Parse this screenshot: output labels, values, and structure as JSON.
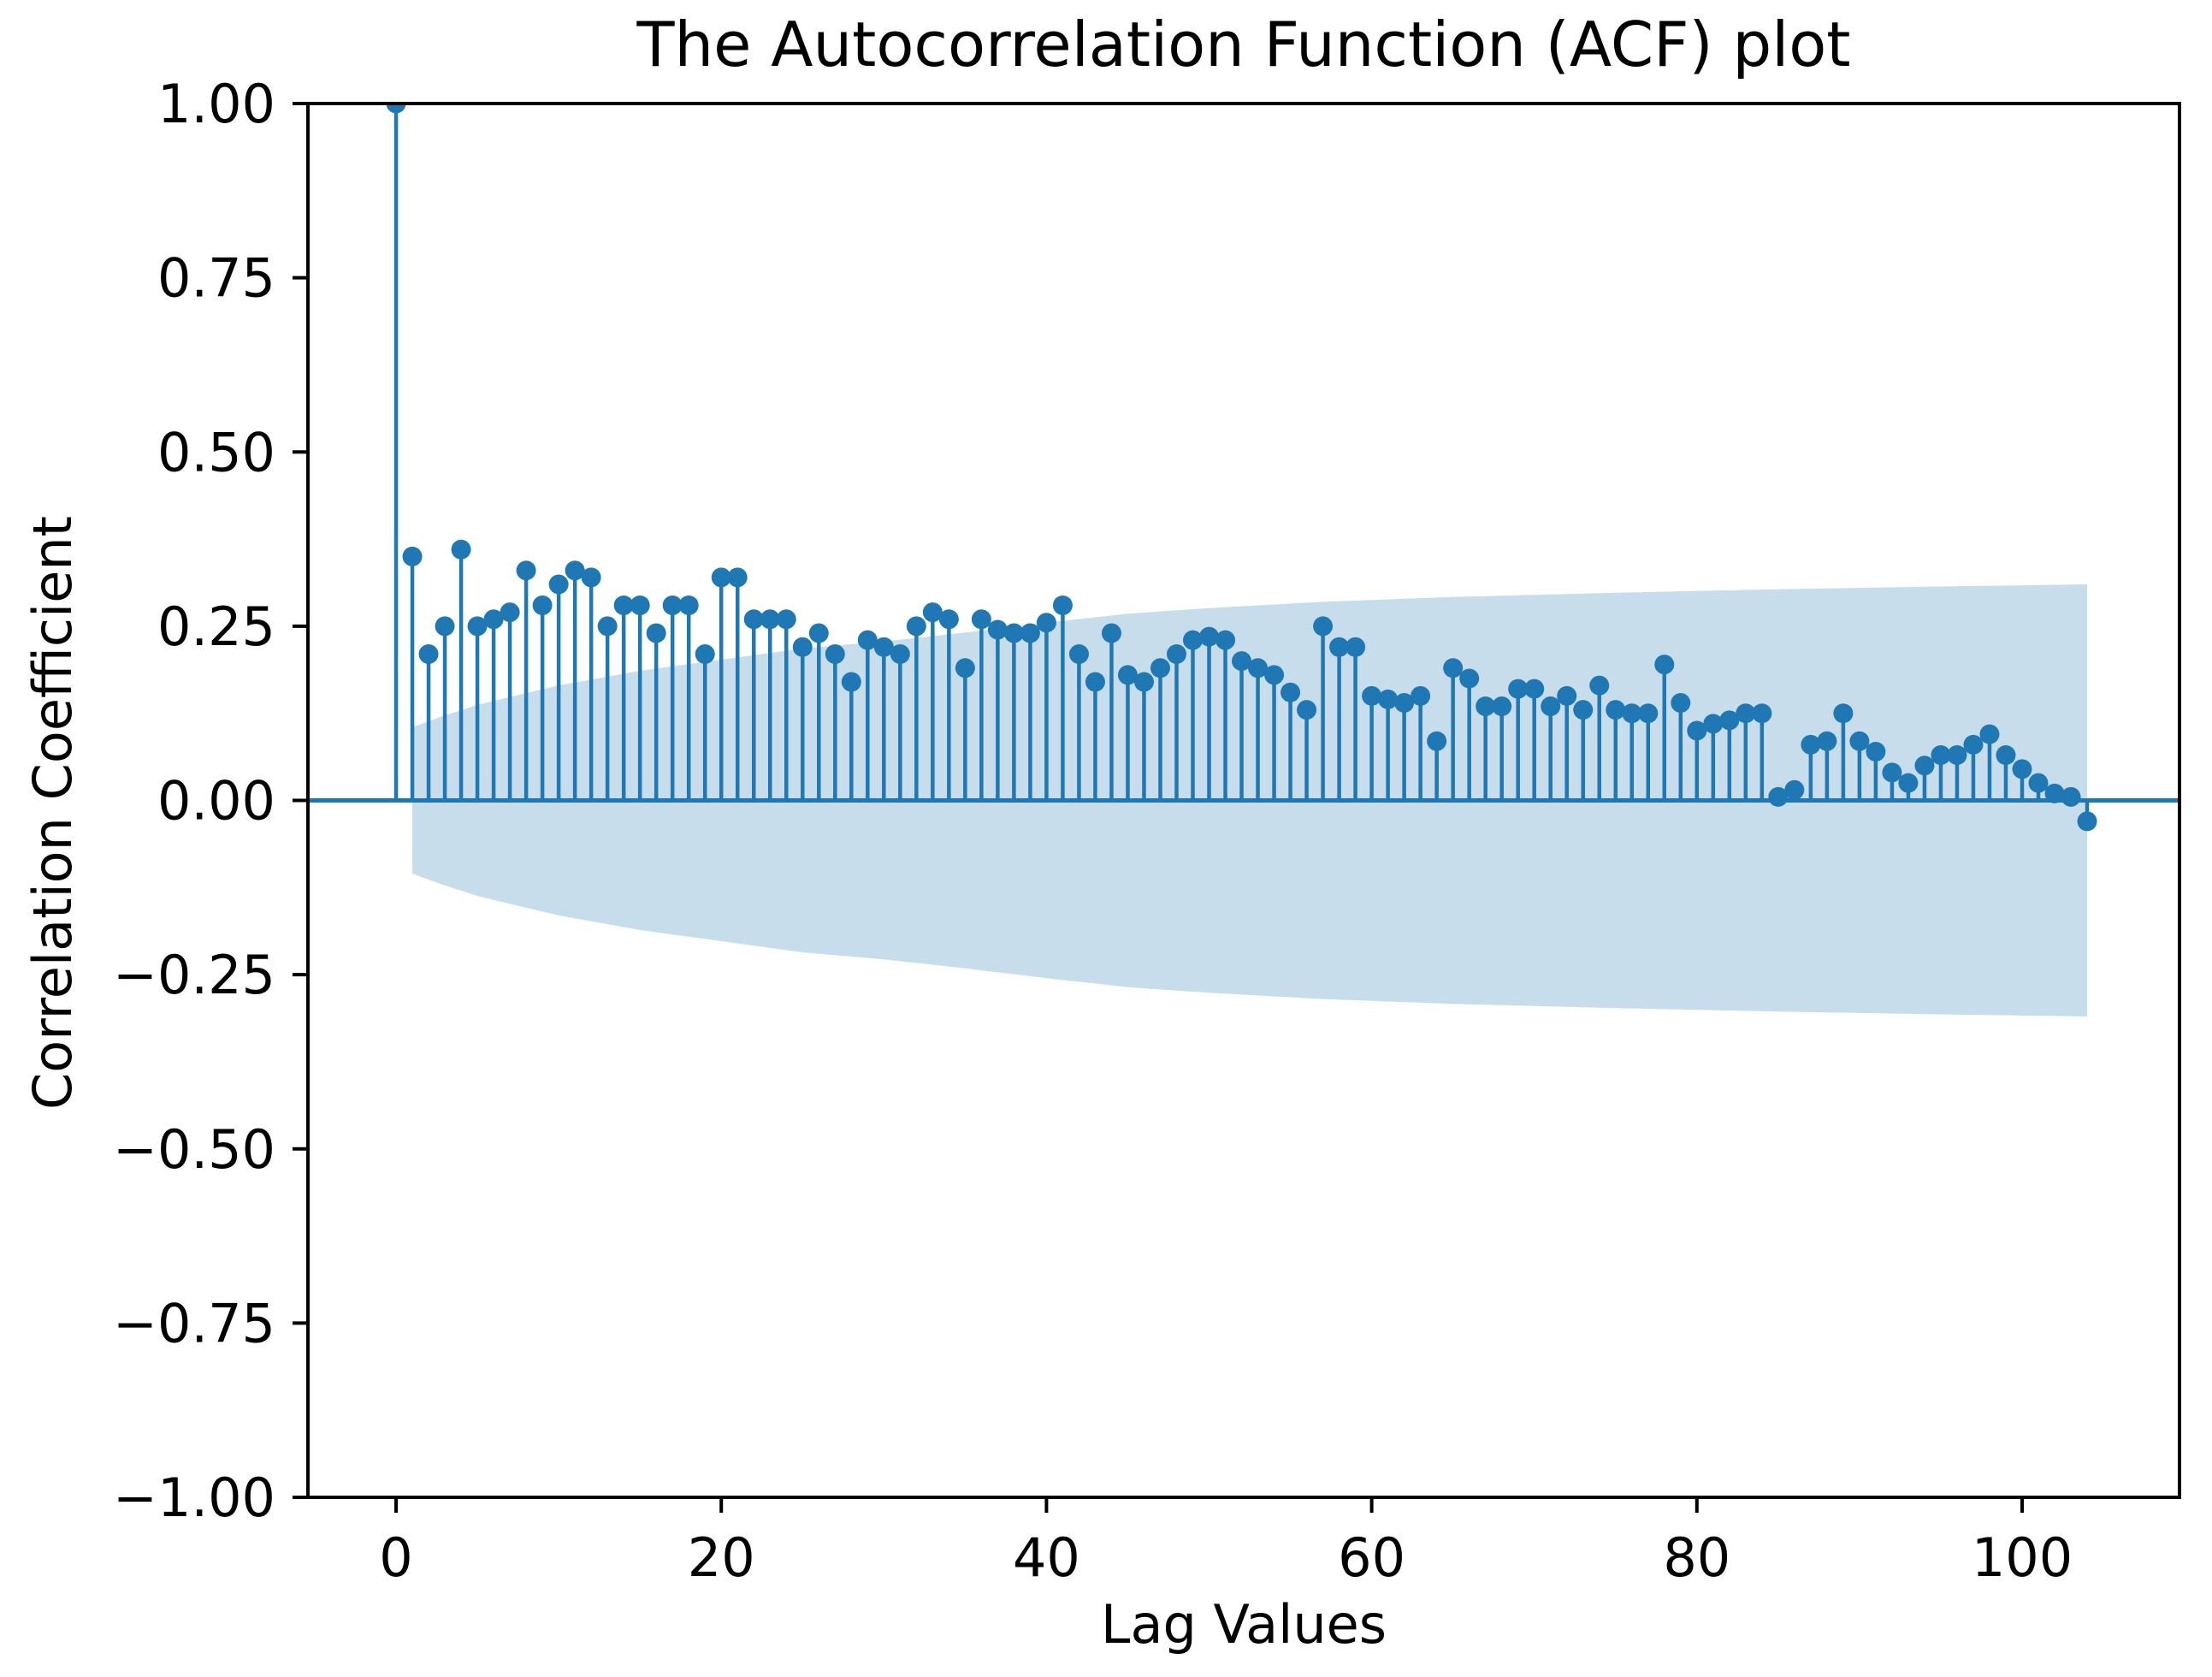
{
  "chart_data": {
    "type": "stem",
    "title": "The Autocorrelation Function (ACF) plot",
    "xlabel": "Lag Values",
    "ylabel": "Correlation Coefficient",
    "xlim": [
      -5.42,
      109.68
    ],
    "ylim": [
      -1.0,
      1.0
    ],
    "grid": false,
    "legend": "none",
    "x_ticks": [
      {
        "value": 0,
        "label": "0"
      },
      {
        "value": 20,
        "label": "20"
      },
      {
        "value": 40,
        "label": "40"
      },
      {
        "value": 60,
        "label": "60"
      },
      {
        "value": 80,
        "label": "80"
      },
      {
        "value": 100,
        "label": "100"
      }
    ],
    "y_ticks": [
      {
        "value": 1.0,
        "label": "1.00"
      },
      {
        "value": 0.75,
        "label": "0.75"
      },
      {
        "value": 0.5,
        "label": "0.50"
      },
      {
        "value": 0.25,
        "label": "0.25"
      },
      {
        "value": 0.0,
        "label": "0.00"
      },
      {
        "value": -0.25,
        "label": "−0.25"
      },
      {
        "value": -0.5,
        "label": "−0.50"
      },
      {
        "value": -0.75,
        "label": "−0.75"
      },
      {
        "value": -1.0,
        "label": "−1.00"
      }
    ],
    "lags": "0 to 104",
    "acf_values": [
      1.0,
      0.35,
      0.21,
      0.25,
      0.36,
      0.25,
      0.26,
      0.27,
      0.33,
      0.28,
      0.31,
      0.33,
      0.32,
      0.25,
      0.28,
      0.28,
      0.24,
      0.28,
      0.28,
      0.21,
      0.32,
      0.32,
      0.26,
      0.26,
      0.26,
      0.22,
      0.24,
      0.21,
      0.17,
      0.23,
      0.22,
      0.21,
      0.25,
      0.27,
      0.26,
      0.19,
      0.26,
      0.245,
      0.24,
      0.24,
      0.255,
      0.28,
      0.21,
      0.17,
      0.24,
      0.18,
      0.17,
      0.19,
      0.21,
      0.23,
      0.235,
      0.23,
      0.2,
      0.19,
      0.18,
      0.155,
      0.13,
      0.25,
      0.22,
      0.22,
      0.15,
      0.145,
      0.14,
      0.15,
      0.085,
      0.19,
      0.175,
      0.135,
      0.135,
      0.16,
      0.16,
      0.135,
      0.15,
      0.13,
      0.165,
      0.13,
      0.125,
      0.125,
      0.195,
      0.14,
      0.1,
      0.11,
      0.115,
      0.125,
      0.125,
      0.005,
      0.015,
      0.08,
      0.085,
      0.125,
      0.085,
      0.07,
      0.04,
      0.025,
      0.05,
      0.065,
      0.065,
      0.08,
      0.095,
      0.065,
      0.045,
      0.025,
      0.01,
      0.005,
      -0.03
    ],
    "confidence_band": {
      "symmetric_about_zero": true,
      "start_lag": 1,
      "end_lag": 104,
      "points": [
        [
          1,
          0.105
        ],
        [
          3,
          0.122
        ],
        [
          5,
          0.137
        ],
        [
          8,
          0.154
        ],
        [
          10,
          0.165
        ],
        [
          15,
          0.186
        ],
        [
          20,
          0.202
        ],
        [
          25,
          0.218
        ],
        [
          30,
          0.228
        ],
        [
          35,
          0.241
        ],
        [
          40,
          0.255
        ],
        [
          45,
          0.268
        ],
        [
          50,
          0.276
        ],
        [
          57,
          0.285
        ],
        [
          65,
          0.292
        ],
        [
          75,
          0.298
        ],
        [
          85,
          0.303
        ],
        [
          95,
          0.307
        ],
        [
          104,
          0.31
        ]
      ]
    },
    "colors": {
      "stem": "#1f77b4",
      "marker": "#1f77b4",
      "zero_line": "#1f77b4",
      "band_fill": "rgba(31,119,180,0.25)",
      "spine": "#000000",
      "tick_text": "#000000",
      "background": "#ffffff"
    }
  }
}
